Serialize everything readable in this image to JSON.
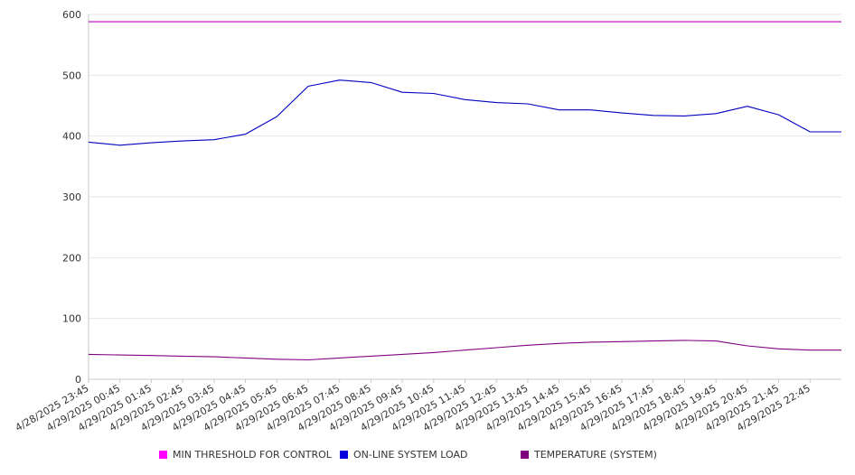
{
  "chart_data": {
    "type": "line",
    "title": "",
    "xlabel": "",
    "ylabel": "",
    "ylim": [
      0,
      600
    ],
    "yticks": [
      0,
      100,
      200,
      300,
      400,
      500,
      600
    ],
    "grid": true,
    "legend_position": "bottom",
    "categories": [
      "4/28/2025 23:45",
      "4/29/2025 00:45",
      "4/29/2025 01:45",
      "4/29/2025 02:45",
      "4/29/2025 03:45",
      "4/29/2025 04:45",
      "4/29/2025 05:45",
      "4/29/2025 06:45",
      "4/29/2025 07:45",
      "4/29/2025 08:45",
      "4/29/2025 09:45",
      "4/29/2025 10:45",
      "4/29/2025 11:45",
      "4/29/2025 12:45",
      "4/29/2025 13:45",
      "4/29/2025 14:45",
      "4/29/2025 15:45",
      "4/29/2025 16:45",
      "4/29/2025 17:45",
      "4/29/2025 18:45",
      "4/29/2025 19:45",
      "4/29/2025 20:45",
      "4/29/2025 21:45",
      "4/29/2025 22:45"
    ],
    "series": [
      {
        "name": "MIN THRESHOLD FOR CONTROL",
        "color": "#c000c0",
        "values": [
          588,
          588,
          588,
          588,
          588,
          588,
          588,
          588,
          588,
          588,
          588,
          588,
          588,
          588,
          588,
          588,
          588,
          588,
          588,
          588,
          588,
          588,
          588,
          588
        ]
      },
      {
        "name": "ON-LINE SYSTEM LOAD",
        "color": "#0000c0",
        "values": [
          390,
          385,
          389,
          392,
          394,
          403,
          432,
          482,
          492,
          488,
          472,
          470,
          460,
          455,
          453,
          443,
          443,
          438,
          434,
          433,
          437,
          449,
          435,
          407
        ]
      },
      {
        "name": "TEMPERATURE (SYSTEM)",
        "color": "#800080",
        "values": [
          41,
          40,
          39,
          38,
          37,
          35,
          33,
          32,
          35,
          38,
          41,
          44,
          48,
          52,
          56,
          59,
          61,
          62,
          63,
          64,
          63,
          55,
          50,
          48
        ]
      }
    ]
  },
  "legend": {
    "items": [
      {
        "label": "MIN THRESHOLD FOR CONTROL",
        "color": "#ff00ff"
      },
      {
        "label": "ON-LINE SYSTEM LOAD",
        "color": "#0000dd"
      },
      {
        "label": "TEMPERATURE (SYSTEM)",
        "color": "#800080"
      }
    ]
  }
}
